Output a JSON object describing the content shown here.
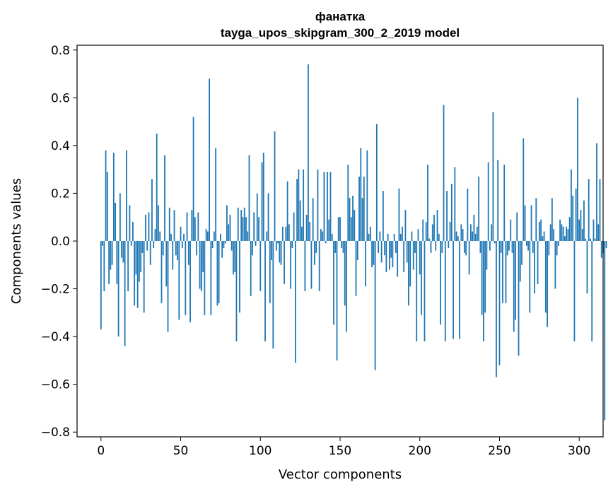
{
  "chart_data": {
    "type": "bar",
    "title": "фанатка",
    "subtitle": "tayga_upos_skipgram_300_2_2019 model",
    "xlabel": "Vector components",
    "ylabel": "Components values",
    "xlim": [
      -15,
      315
    ],
    "ylim": [
      -0.82,
      0.82
    ],
    "xticks": [
      0,
      50,
      100,
      150,
      200,
      250,
      300
    ],
    "xtick_labels": [
      "0",
      "50",
      "100",
      "150",
      "200",
      "250",
      "300"
    ],
    "yticks": [
      -0.8,
      -0.6,
      -0.4,
      -0.2,
      0.0,
      0.2,
      0.4,
      0.6,
      0.8
    ],
    "ytick_labels": [
      "−0.8",
      "−0.6",
      "−0.4",
      "−0.2",
      "0.0",
      "0.2",
      "0.4",
      "0.6",
      "0.8"
    ],
    "bar_color": "#1f77b4",
    "grid": false,
    "values": [
      -0.37,
      -0.02,
      -0.21,
      0.38,
      0.29,
      -0.18,
      -0.12,
      -0.1,
      0.37,
      0.16,
      -0.18,
      -0.4,
      0.2,
      -0.07,
      -0.09,
      -0.44,
      0.38,
      -0.21,
      0.15,
      -0.02,
      0.08,
      -0.27,
      -0.14,
      -0.28,
      -0.17,
      -0.13,
      -0.05,
      -0.3,
      0.11,
      -0.04,
      0.12,
      -0.1,
      0.26,
      -0.03,
      0.05,
      0.45,
      0.15,
      0.04,
      -0.26,
      -0.06,
      0.36,
      -0.19,
      -0.38,
      0.14,
      0.03,
      -0.12,
      0.13,
      -0.06,
      -0.08,
      -0.33,
      0.06,
      -0.03,
      0.03,
      -0.31,
      0.12,
      -0.1,
      -0.34,
      0.13,
      0.52,
      0.1,
      -0.06,
      0.12,
      -0.2,
      -0.21,
      -0.13,
      -0.31,
      0.05,
      0.04,
      0.68,
      -0.31,
      -0.03,
      0.04,
      0.39,
      -0.27,
      -0.26,
      0.03,
      -0.07,
      -0.03,
      -0.01,
      0.15,
      0.07,
      0.11,
      -0.04,
      -0.14,
      -0.13,
      -0.42,
      0.14,
      -0.3,
      0.13,
      0.1,
      0.14,
      0.1,
      0.04,
      0.36,
      -0.23,
      -0.06,
      0.12,
      -0.02,
      0.2,
      0.1,
      -0.21,
      0.33,
      0.37,
      -0.42,
      0.04,
      0.2,
      -0.26,
      -0.08,
      -0.45,
      0.46,
      -0.04,
      -0.01,
      -0.09,
      -0.1,
      0.06,
      -0.18,
      0.06,
      0.25,
      0.07,
      -0.2,
      -0.03,
      0.12,
      -0.51,
      0.26,
      0.3,
      0.17,
      0.06,
      0.3,
      -0.21,
      0.11,
      0.74,
      0.08,
      -0.2,
      0.18,
      -0.1,
      -0.05,
      0.3,
      -0.21,
      0.05,
      0.04,
      0.29,
      -0.01,
      0.29,
      0.09,
      0.29,
      0.03,
      -0.35,
      -0.05,
      -0.5,
      0.1,
      0.1,
      -0.03,
      -0.05,
      -0.27,
      -0.38,
      0.32,
      0.18,
      0.1,
      0.19,
      0.13,
      -0.23,
      -0.08,
      0.27,
      0.39,
      0.18,
      0.27,
      -0.19,
      0.38,
      0.03,
      0.06,
      -0.11,
      -0.1,
      -0.54,
      0.49,
      -0.05,
      0.04,
      -0.09,
      0.21,
      -0.06,
      -0.13,
      0.03,
      -0.12,
      -0.07,
      -0.11,
      0.03,
      -0.05,
      -0.15,
      0.22,
      0.03,
      0.06,
      -0.13,
      0.13,
      -0.09,
      -0.27,
      -0.19,
      0.04,
      -0.12,
      -0.05,
      -0.42,
      0.05,
      -0.14,
      -0.31,
      0.09,
      -0.42,
      0.08,
      0.32,
      0.01,
      -0.05,
      0.07,
      0.11,
      -0.04,
      0.13,
      0.03,
      -0.35,
      -0.05,
      0.57,
      -0.42,
      0.21,
      -0.03,
      0.08,
      0.24,
      -0.41,
      0.31,
      0.04,
      0.02,
      -0.41,
      0.07,
      0.05,
      -0.05,
      -0.06,
      0.22,
      -0.14,
      0.07,
      0.04,
      0.11,
      0.03,
      0.06,
      0.27,
      -0.05,
      -0.31,
      -0.42,
      -0.3,
      -0.12,
      0.33,
      -0.04,
      0.07,
      0.54,
      -0.01,
      -0.57,
      0.34,
      -0.52,
      -0.05,
      -0.26,
      0.32,
      -0.26,
      -0.06,
      -0.04,
      0.09,
      -0.05,
      -0.38,
      -0.33,
      0.12,
      -0.48,
      -0.17,
      -0.1,
      0.43,
      0.15,
      -0.02,
      -0.04,
      -0.3,
      0.15,
      -0.05,
      -0.22,
      0.18,
      -0.18,
      0.08,
      0.09,
      0.02,
      0.04,
      -0.3,
      -0.36,
      -0.06,
      0.07,
      0.18,
      0.05,
      -0.2,
      -0.06,
      -0.02,
      0.09,
      0.07,
      0.06,
      0.02,
      0.06,
      0.05,
      0.1,
      0.3,
      0.19,
      -0.42,
      0.22,
      0.6,
      0.09,
      0.13,
      0.05,
      0.17,
      0.01,
      -0.22,
      0.26,
      0.01,
      -0.42,
      0.09,
      0.01,
      0.41,
      0.07,
      0.26,
      -0.07,
      -0.05,
      -0.75,
      -0.03
    ]
  }
}
